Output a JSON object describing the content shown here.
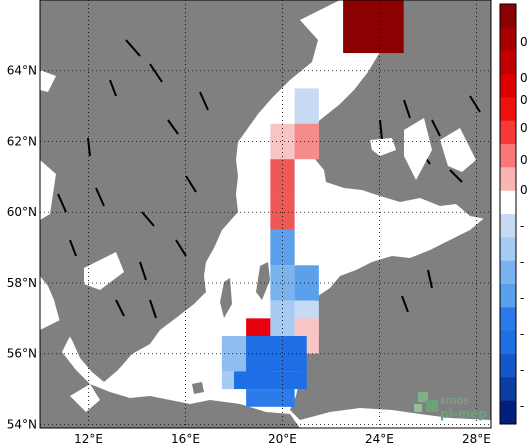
{
  "map": {
    "lon_ticks": [
      "12°E",
      "16°E",
      "20°E",
      "24°E",
      "28°E"
    ],
    "lat_ticks": [
      "64°N",
      "62°N",
      "60°N",
      "58°N",
      "56°N",
      "54°N"
    ],
    "lon_range": [
      10,
      28.6
    ],
    "lat_range": [
      53.9,
      66
    ],
    "land_color": "#808080",
    "ocean_color": "#ffffff",
    "grid_style": "dotted"
  },
  "cells": [
    {
      "lon0": 22.5,
      "lat0": 64.5,
      "lon1": 25.0,
      "lat1": 66.0,
      "color": "#8b0000"
    },
    {
      "lon0": 20.5,
      "lat0": 62.5,
      "lon1": 21.5,
      "lat1": 63.5,
      "color": "#c6dbf3"
    },
    {
      "lon0": 19.5,
      "lat0": 61.5,
      "lon1": 21.5,
      "lat1": 62.5,
      "color": "#f8c4c4"
    },
    {
      "lon0": 20.5,
      "lat0": 61.5,
      "lon1": 21.5,
      "lat1": 62.5,
      "color": "#f48c8c"
    },
    {
      "lon0": 19.5,
      "lat0": 60.5,
      "lon1": 20.5,
      "lat1": 61.5,
      "color": "#f05858"
    },
    {
      "lon0": 19.5,
      "lat0": 59.5,
      "lon1": 20.5,
      "lat1": 60.5,
      "color": "#f05858"
    },
    {
      "lon0": 19.5,
      "lat0": 58.5,
      "lon1": 20.5,
      "lat1": 59.5,
      "color": "#5aa0ea"
    },
    {
      "lon0": 19.5,
      "lat0": 57.5,
      "lon1": 20.5,
      "lat1": 58.5,
      "color": "#7ab3ee"
    },
    {
      "lon0": 20.5,
      "lat0": 57.5,
      "lon1": 21.5,
      "lat1": 58.5,
      "color": "#5aa0ea"
    },
    {
      "lon0": 19.5,
      "lat0": 56.5,
      "lon1": 20.5,
      "lat1": 57.5,
      "color": "#a7ccf3"
    },
    {
      "lon0": 20.5,
      "lat0": 56.5,
      "lon1": 21.5,
      "lat1": 57.5,
      "color": "#c6dbf3"
    },
    {
      "lon0": 18.5,
      "lat0": 55.5,
      "lon1": 19.5,
      "lat1": 57.0,
      "color": "#e8000f"
    },
    {
      "lon0": 20.5,
      "lat0": 56.0,
      "lon1": 21.5,
      "lat1": 57.0,
      "color": "#f8c4c4"
    },
    {
      "lon0": 17.5,
      "lat0": 55.5,
      "lon1": 18.5,
      "lat1": 56.5,
      "color": "#8fbdf0"
    },
    {
      "lon0": 18.5,
      "lat0": 55.5,
      "lon1": 21.0,
      "lat1": 56.5,
      "color": "#1e6ee6"
    },
    {
      "lon0": 17.5,
      "lat0": 55.0,
      "lon1": 18.0,
      "lat1": 55.5,
      "color": "#a7ccf3"
    },
    {
      "lon0": 18.0,
      "lat0": 55.0,
      "lon1": 21.0,
      "lat1": 55.5,
      "color": "#1e6ee6"
    },
    {
      "lon0": 18.5,
      "lat0": 54.5,
      "lon1": 20.5,
      "lat1": 55.0,
      "color": "#2b7bea"
    },
    {
      "lon0": 20.0,
      "lat0": 54.5,
      "lon1": 20.5,
      "lat1": 55.0,
      "color": "#2b7bea"
    }
  ],
  "colorbar": {
    "colors": [
      "#8b0000",
      "#a80000",
      "#c00000",
      "#dc0000",
      "#f01010",
      "#f53838",
      "#f87878",
      "#fbb4b4",
      "#ffffff",
      "#c6dbf3",
      "#a7ccf3",
      "#7ab3ee",
      "#5aa0ea",
      "#2b7bea",
      "#1e6ee6",
      "#1357c8",
      "#0a3ea0",
      "#02207a"
    ],
    "labels": [
      "0",
      "0",
      "0",
      "0",
      "0",
      "0",
      "-",
      "-",
      "-",
      "-",
      "-",
      "-"
    ]
  },
  "watermark": {
    "line1": "smos",
    "line2": "pi-mep"
  }
}
